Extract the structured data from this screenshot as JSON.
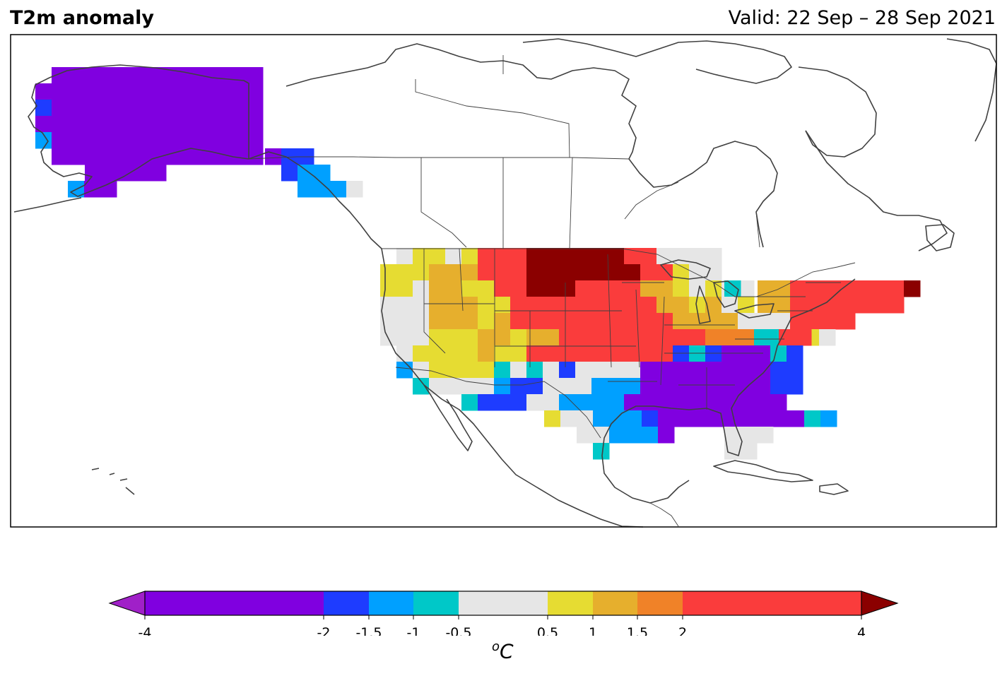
{
  "header": {
    "title": "T2m anomaly",
    "valid": "Valid: 22 Sep – 28 Sep 2021"
  },
  "colorbar": {
    "unit_prefix": "o",
    "unit_main": "C",
    "ticks": [
      "-4",
      "-2",
      "-1.5",
      "-1",
      "-0.5",
      "0.5",
      "1",
      "1.5",
      "2",
      "4"
    ],
    "colors": {
      "below": "#a020c8",
      "m4_m2": "#8000e0",
      "m2_m15": "#1e3cff",
      "m15_m1": "#00a0ff",
      "m1_m05": "#00c8c8",
      "m05_05": "#e6e6e6",
      "05_1": "#e6dc32",
      "1_15": "#e6af2d",
      "15_2": "#f08228",
      "2_4": "#fa3c3c",
      "above": "#8b0000"
    }
  },
  "map": {
    "legend_position": "bottom",
    "coastline_color": "#404040"
  }
}
